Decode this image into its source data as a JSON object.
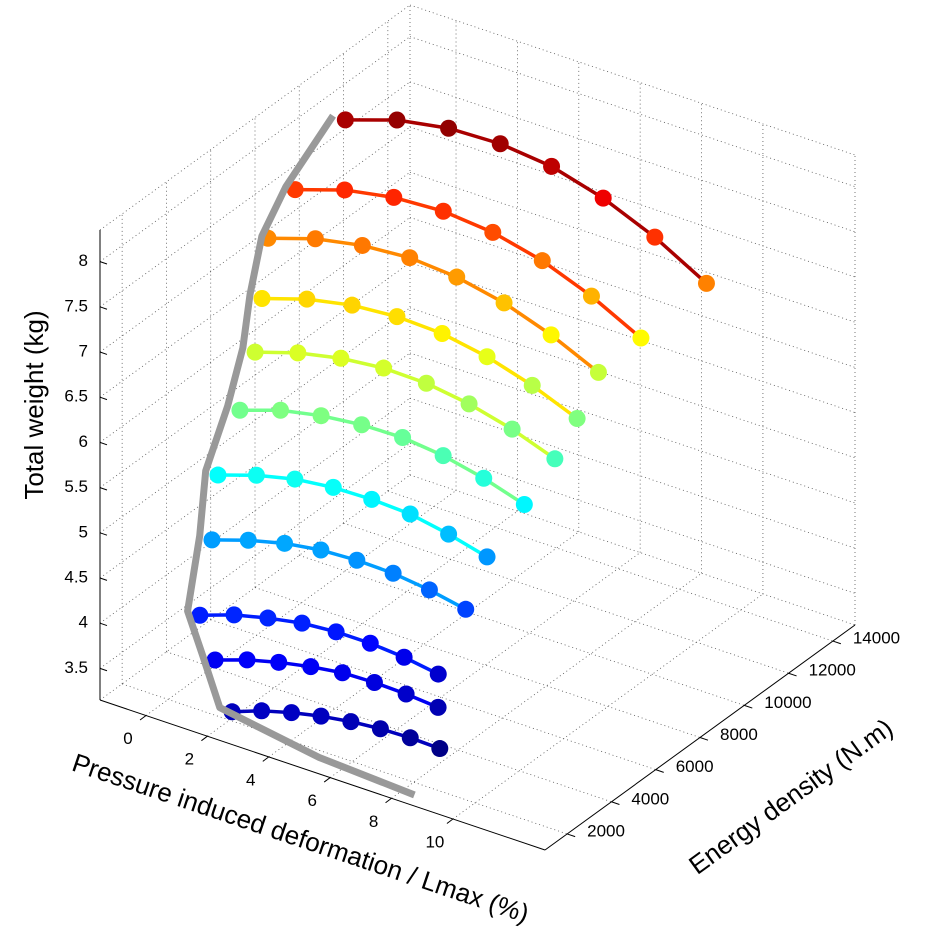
{
  "chart_data": {
    "type": "scatter3d",
    "xlabel": "Pressure induced deformation / Lmax (%)",
    "ylabel": "Energy density (N.m)",
    "zlabel": "Total weight (kg)",
    "xlim": [
      -1.5,
      13
    ],
    "ylim": [
      1000,
      15000
    ],
    "zlim": [
      3.15,
      8.35
    ],
    "xticks": [
      0,
      2,
      4,
      6,
      8,
      10
    ],
    "yticks": [
      2000,
      4000,
      6000,
      8000,
      10000,
      12000,
      14000
    ],
    "zticks": [
      3.5,
      4,
      4.5,
      5,
      5.5,
      6,
      6.5,
      7,
      7.5,
      8
    ],
    "grid": true,
    "colormap": "jet",
    "series": [
      {
        "x": [
          2.66,
          3.37,
          4.09,
          4.8,
          5.52,
          6.23,
          6.95,
          7.66
        ],
        "y": [
          1200,
          1550,
          1900,
          2250,
          2600,
          2950,
          3300,
          3650
        ],
        "z": [
          3.46,
          3.49,
          3.49,
          3.47,
          3.43,
          3.37,
          3.29,
          3.19
        ]
      },
      {
        "x": [
          1.47,
          2.26,
          3.04,
          3.83,
          4.61,
          5.4,
          6.18,
          6.97
        ],
        "y": [
          2080,
          2430,
          2780,
          3130,
          3480,
          3830,
          4180,
          4530
        ],
        "z": [
          3.74,
          3.77,
          3.77,
          3.75,
          3.71,
          3.63,
          3.53,
          3.41
        ]
      },
      {
        "x": [
          0.34,
          1.2,
          2.05,
          2.91,
          3.77,
          4.63,
          5.48,
          6.34
        ],
        "y": [
          2960,
          3310,
          3660,
          4010,
          4360,
          4710,
          5060,
          5410
        ],
        "z": [
          3.95,
          3.99,
          3.99,
          3.97,
          3.91,
          3.82,
          3.7,
          3.55
        ]
      },
      {
        "x": [
          0.1,
          1.03,
          1.96,
          2.89,
          3.81,
          4.74,
          5.67,
          6.6
        ],
        "y": [
          3840,
          4190,
          4540,
          4890,
          5240,
          5590,
          5940,
          6290
        ],
        "z": [
          4.6,
          4.64,
          4.65,
          4.62,
          4.55,
          4.45,
          4.31,
          4.14
        ]
      },
      {
        "x": [
          -0.34,
          0.66,
          1.66,
          2.66,
          3.66,
          4.66,
          5.66,
          6.66
        ],
        "y": [
          4720,
          5070,
          5420,
          5770,
          6120,
          6470,
          6820,
          7170
        ],
        "z": [
          5.11,
          5.16,
          5.17,
          5.13,
          5.05,
          4.94,
          4.77,
          4.57
        ]
      },
      {
        "x": [
          -0.26,
          0.81,
          1.88,
          2.95,
          4.03,
          5.1,
          6.17,
          7.24
        ],
        "y": [
          5600,
          5950,
          6300,
          6650,
          7000,
          7350,
          7700,
          8050
        ],
        "z": [
          5.68,
          5.74,
          5.74,
          5.7,
          5.62,
          5.48,
          5.29,
          5.06
        ]
      },
      {
        "x": [
          -0.4,
          0.74,
          1.89,
          3.03,
          4.17,
          5.31,
          6.46,
          7.6
        ],
        "y": [
          6480,
          6830,
          7180,
          7530,
          7880,
          8230,
          8580,
          8930
        ],
        "z": [
          6.15,
          6.21,
          6.22,
          6.18,
          6.08,
          5.92,
          5.71,
          5.45
        ]
      },
      {
        "x": [
          -0.81,
          0.4,
          1.62,
          2.83,
          4.05,
          5.26,
          6.48,
          7.69
        ],
        "y": [
          7360,
          7710,
          8060,
          8410,
          8760,
          9110,
          9460,
          9810
        ],
        "z": [
          6.54,
          6.61,
          6.62,
          6.57,
          6.46,
          6.28,
          6.04,
          5.75
        ]
      },
      {
        "x": [
          -1.25,
          0.04,
          1.32,
          2.61,
          3.89,
          5.18,
          6.46,
          7.75
        ],
        "y": [
          8240,
          8590,
          8940,
          9290,
          9640,
          9990,
          10340,
          10690
        ],
        "z": [
          7.0,
          7.08,
          7.09,
          7.04,
          6.91,
          6.71,
          6.44,
          6.11
        ]
      },
      {
        "x": [
          -1.0,
          0.36,
          1.71,
          3.07,
          4.43,
          5.79,
          7.14,
          8.5
        ],
        "y": [
          9120,
          9470,
          9820,
          10170,
          10520,
          10870,
          11220,
          11570
        ],
        "z": [
          7.41,
          7.5,
          7.51,
          7.45,
          7.31,
          7.09,
          6.79,
          6.42
        ]
      },
      {
        "x": [
          0,
          1.43,
          2.86,
          4.29,
          5.71,
          7.14,
          8.57,
          10
        ],
        "y": [
          10000,
          10350,
          10700,
          11050,
          11400,
          11750,
          12100,
          12450
        ],
        "z": [
          8.14,
          8.24,
          8.25,
          8.18,
          8.03,
          7.78,
          7.45,
          7.04
        ]
      }
    ],
    "envelope": {
      "color": "#999999",
      "x": [
        8.6,
        5.5,
        2.26,
        1.07,
        -0.06,
        -0.3,
        -0.74,
        -0.66,
        -0.8,
        -1.2,
        -1.45,
        -1.3,
        -0.4
      ],
      "y": [
        1200,
        1200,
        1200,
        2080,
        2960,
        3840,
        4720,
        5600,
        6480,
        7360,
        8240,
        9120,
        10000
      ],
      "z": [
        3.22,
        3.28,
        3.46,
        3.74,
        3.95,
        4.6,
        5.11,
        5.68,
        6.15,
        6.54,
        7.0,
        7.41,
        8.14
      ]
    }
  }
}
